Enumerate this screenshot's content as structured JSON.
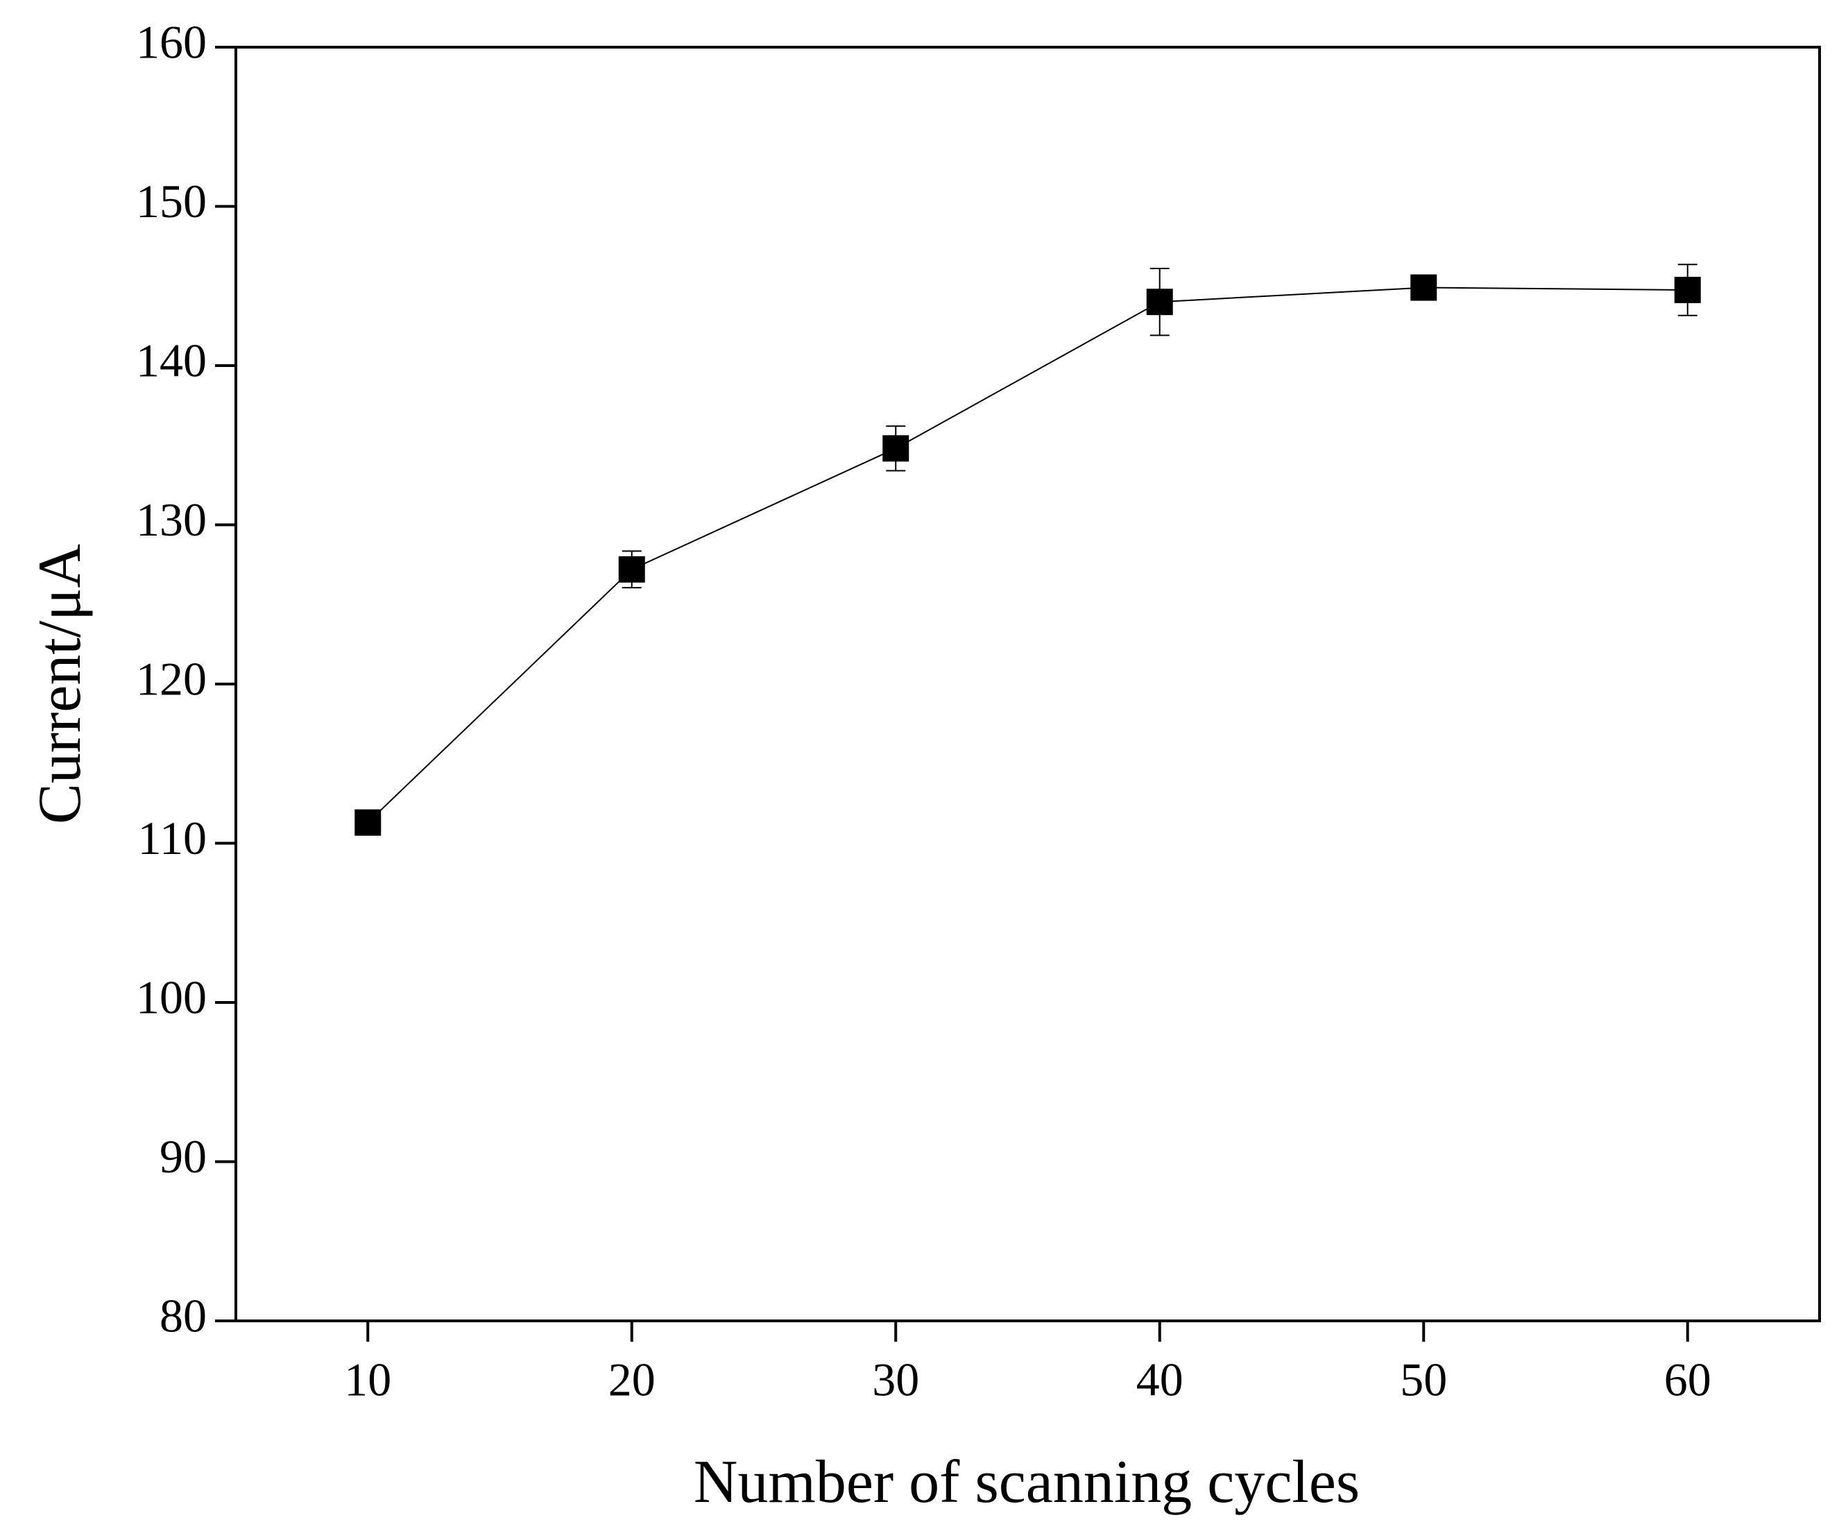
{
  "chart_data": {
    "type": "line",
    "x_label": "Number of scanning cycles",
    "y_label": "Current/μA",
    "x": [
      10,
      20,
      30,
      40,
      50,
      60
    ],
    "series": [
      {
        "color": "#000000",
        "values": [
          111.3,
          127.2,
          134.8,
          144.0,
          144.9,
          144.75
        ],
        "errors": [
          0,
          1.15,
          1.4,
          2.1,
          0,
          1.6
        ]
      }
    ],
    "xlim": [
      5,
      65
    ],
    "xticks": [
      10,
      20,
      30,
      40,
      50,
      60
    ],
    "ylim": [
      80,
      160
    ],
    "yticks": [
      80,
      90,
      100,
      110,
      120,
      130,
      140,
      150,
      160
    ],
    "grid": false
  }
}
